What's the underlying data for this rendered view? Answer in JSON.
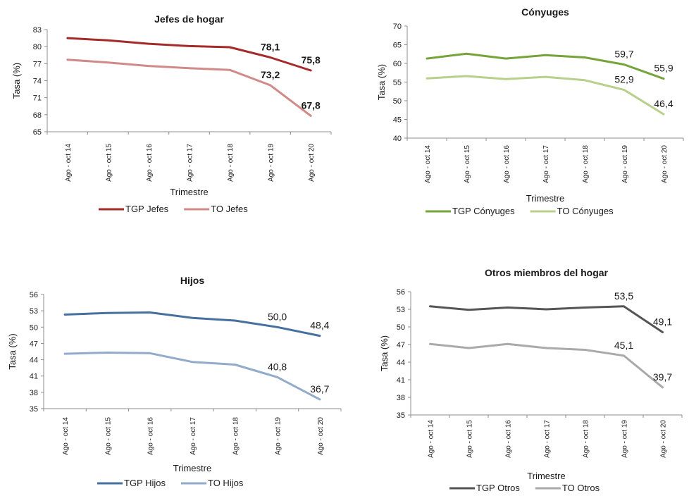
{
  "chart_data": [
    {
      "type": "line",
      "title": "Jefes de hogar",
      "xlabel": "Trimestre",
      "ylabel": "Tasa (%)",
      "ylim": [
        65,
        83
      ],
      "yticks": [
        "65",
        "68",
        "71",
        "74",
        "77",
        "80",
        "83"
      ],
      "categories": [
        "Ago - oct 14",
        "Ago - oct 15",
        "Ago - oct 16",
        "Ago - oct 17",
        "Ago - oct 18",
        "Ago - oct 19",
        "Ago - oct 20"
      ],
      "series": [
        {
          "name": "TGP Jefes",
          "color": "#a52a2a",
          "values": [
            81.5,
            81.1,
            80.5,
            80.1,
            79.9,
            78.1,
            75.8
          ]
        },
        {
          "name": "TO Jefes",
          "color": "#d08a88",
          "values": [
            77.7,
            77.2,
            76.6,
            76.2,
            75.9,
            73.2,
            67.8
          ]
        }
      ],
      "data_labels": [
        {
          "series": 0,
          "index": 5,
          "text": "78,1"
        },
        {
          "series": 0,
          "index": 6,
          "text": "75,8"
        },
        {
          "series": 1,
          "index": 5,
          "text": "73,2"
        },
        {
          "series": 1,
          "index": 6,
          "text": "67,8"
        }
      ],
      "labels_bold": true,
      "grid": false,
      "legend": "bottom"
    },
    {
      "type": "line",
      "title": "Cónyuges",
      "xlabel": "Trimestre",
      "ylabel": "Tasa (%)",
      "ylim": [
        40,
        70
      ],
      "yticks": [
        "40",
        "45",
        "50",
        "55",
        "60",
        "65",
        "70"
      ],
      "categories": [
        "Ago - oct 14",
        "Ago - oct 15",
        "Ago - oct 16",
        "Ago - oct 17",
        "Ago - oct 18",
        "Ago - oct 19",
        "Ago - oct 20"
      ],
      "series": [
        {
          "name": "TGP Cónyuges",
          "color": "#76a33a",
          "values": [
            61.3,
            62.6,
            61.3,
            62.2,
            61.6,
            59.7,
            55.9
          ]
        },
        {
          "name": "TO Cónyuges",
          "color": "#b8d08c",
          "values": [
            56.0,
            56.6,
            55.8,
            56.4,
            55.5,
            52.9,
            46.4
          ]
        }
      ],
      "data_labels": [
        {
          "series": 0,
          "index": 5,
          "text": "59,7"
        },
        {
          "series": 0,
          "index": 6,
          "text": "55,9"
        },
        {
          "series": 1,
          "index": 5,
          "text": "52,9"
        },
        {
          "series": 1,
          "index": 6,
          "text": "46,4"
        }
      ],
      "labels_bold": false,
      "grid": false,
      "legend": "bottom"
    },
    {
      "type": "line",
      "title": "Hijos",
      "xlabel": "Trimestre",
      "ylabel": "Tasa (%)",
      "ylim": [
        35,
        56
      ],
      "yticks": [
        "35",
        "38",
        "41",
        "44",
        "47",
        "50",
        "53",
        "56"
      ],
      "categories": [
        "Ago - oct 14",
        "Ago - oct 15",
        "Ago - oct 16",
        "Ago - oct 17",
        "Ago - oct 18",
        "Ago - oct 19",
        "Ago - oct 20"
      ],
      "series": [
        {
          "name": "TGP Hijos",
          "color": "#46709e",
          "values": [
            52.3,
            52.6,
            52.7,
            51.7,
            51.2,
            50.0,
            48.4
          ]
        },
        {
          "name": "TO Hijos",
          "color": "#93abcb",
          "values": [
            45.1,
            45.3,
            45.2,
            43.6,
            43.1,
            40.8,
            36.7
          ]
        }
      ],
      "data_labels": [
        {
          "series": 0,
          "index": 5,
          "text": "50,0"
        },
        {
          "series": 0,
          "index": 6,
          "text": "48,4"
        },
        {
          "series": 1,
          "index": 5,
          "text": "40,8"
        },
        {
          "series": 1,
          "index": 6,
          "text": "36,7"
        }
      ],
      "labels_bold": false,
      "grid": false,
      "legend": "bottom"
    },
    {
      "type": "line",
      "title": "Otros miembros del hogar",
      "xlabel": "Trimestre",
      "ylabel": "Tasa (%)",
      "ylim": [
        35,
        56
      ],
      "yticks": [
        "35",
        "38",
        "41",
        "44",
        "47",
        "50",
        "53",
        "56"
      ],
      "categories": [
        "Ago - oct 14",
        "Ago - oct 15",
        "Ago - oct 16",
        "Ago - oct 17",
        "Ago - oct 18",
        "Ago - oct 19",
        "Ago - oct 20"
      ],
      "series": [
        {
          "name": "TGP Otros",
          "color": "#555555",
          "values": [
            53.5,
            52.9,
            53.3,
            53.0,
            53.3,
            53.5,
            49.1
          ]
        },
        {
          "name": "TO Otros",
          "color": "#aaaaaa",
          "values": [
            47.1,
            46.4,
            47.1,
            46.4,
            46.1,
            45.1,
            39.7
          ]
        }
      ],
      "data_labels": [
        {
          "series": 0,
          "index": 5,
          "text": "53,5"
        },
        {
          "series": 0,
          "index": 6,
          "text": "49,1"
        },
        {
          "series": 1,
          "index": 5,
          "text": "45,1"
        },
        {
          "series": 1,
          "index": 6,
          "text": "39,7"
        }
      ],
      "labels_bold": false,
      "grid": false,
      "legend": "bottom"
    }
  ]
}
